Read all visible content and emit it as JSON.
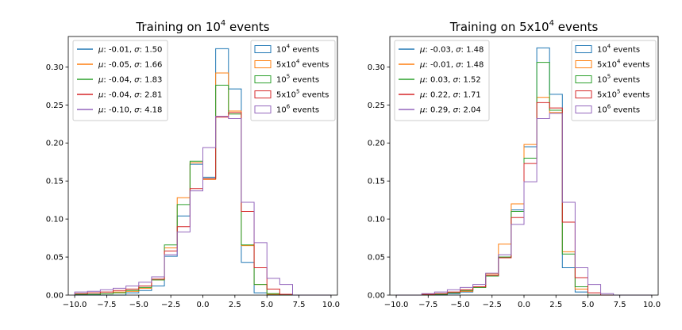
{
  "chart_data": [
    {
      "type": "bar",
      "histtype": "step",
      "title_main": "Training on 10",
      "title_sup": "4",
      "title_tail": " events",
      "xlim": [
        -10.5,
        10.5
      ],
      "ylim": [
        0,
        0.34
      ],
      "x_ticks": [
        -10.0,
        -7.5,
        -5.0,
        -2.5,
        0.0,
        2.5,
        5.0,
        7.5,
        10.0
      ],
      "x_tick_labels": [
        "−10.0",
        "−7.5",
        "−5.0",
        "−2.5",
        "0.0",
        "2.5",
        "5.0",
        "7.5",
        "10.0"
      ],
      "y_ticks": [
        0.0,
        0.05,
        0.1,
        0.15,
        0.2,
        0.25,
        0.3
      ],
      "y_tick_labels": [
        "0.00",
        "0.05",
        "0.10",
        "0.15",
        "0.20",
        "0.25",
        "0.30"
      ],
      "bin_edges": [
        -10,
        -9,
        -8,
        -7,
        -6,
        -5,
        -4,
        -3,
        -2,
        -1,
        0,
        1,
        2,
        3,
        4,
        5,
        6,
        7,
        8,
        9,
        10
      ],
      "series": [
        {
          "legend_base": "10",
          "legend_sup": "4",
          "legend_tail": " events",
          "color": "#1f77b4",
          "values": [
            0,
            0,
            0,
            0,
            0.003,
            0.006,
            0.012,
            0.051,
            0.104,
            0.172,
            0.155,
            0.324,
            0.271,
            0.043,
            0.003,
            0,
            0,
            0,
            0,
            0
          ]
        },
        {
          "legend_base": "5x10",
          "legend_sup": "4",
          "legend_tail": " events",
          "color": "#ff7f0e",
          "values": [
            0.001,
            0.001,
            0.002,
            0.004,
            0.005,
            0.009,
            0.02,
            0.062,
            0.128,
            0.174,
            0.152,
            0.292,
            0.242,
            0.065,
            0.014,
            0.001,
            0,
            0,
            0,
            0
          ]
        },
        {
          "legend_base": "10",
          "legend_sup": "5",
          "legend_tail": " events",
          "color": "#2ca02c",
          "values": [
            0.001,
            0.001,
            0.002,
            0.003,
            0.006,
            0.01,
            0.02,
            0.066,
            0.119,
            0.176,
            0.153,
            0.276,
            0.238,
            0.066,
            0.014,
            0.002,
            0,
            0,
            0,
            0
          ]
        },
        {
          "legend_base": "5x10",
          "legend_sup": "5",
          "legend_tail": " events",
          "color": "#d62728",
          "values": [
            0.002,
            0.003,
            0.004,
            0.006,
            0.008,
            0.012,
            0.021,
            0.058,
            0.09,
            0.14,
            0.153,
            0.234,
            0.24,
            0.11,
            0.036,
            0.008,
            0.001,
            0,
            0,
            0
          ]
        },
        {
          "legend_base": "10",
          "legend_sup": "6",
          "legend_tail": " events",
          "color": "#9467bd",
          "values": [
            0.004,
            0.005,
            0.007,
            0.009,
            0.012,
            0.017,
            0.024,
            0.053,
            0.083,
            0.137,
            0.194,
            0.235,
            0.232,
            0.122,
            0.069,
            0.022,
            0.014,
            0,
            0,
            0
          ]
        }
      ],
      "fit_legend": [
        {
          "color": "#1f77b4",
          "mu": "-0.01",
          "sigma": "1.50"
        },
        {
          "color": "#ff7f0e",
          "mu": "-0.05",
          "sigma": "1.66"
        },
        {
          "color": "#2ca02c",
          "mu": "-0.04",
          "sigma": "1.83"
        },
        {
          "color": "#d62728",
          "mu": "-0.04",
          "sigma": "2.81"
        },
        {
          "color": "#9467bd",
          "mu": "-0.10",
          "sigma": "4.18"
        }
      ],
      "legend_location_fits": "upper-left",
      "legend_location_series": "upper-right"
    },
    {
      "type": "bar",
      "histtype": "step",
      "title_main": "Training on 5x10",
      "title_sup": "4",
      "title_tail": " events",
      "xlim": [
        -10.5,
        10.5
      ],
      "ylim": [
        0,
        0.34
      ],
      "x_ticks": [
        -10.0,
        -7.5,
        -5.0,
        -2.5,
        0.0,
        2.5,
        5.0,
        7.5,
        10.0
      ],
      "x_tick_labels": [
        "−10.0",
        "−7.5",
        "−5.0",
        "−2.5",
        "0.0",
        "2.5",
        "5.0",
        "7.5",
        "10.0"
      ],
      "y_ticks": [
        0.0,
        0.05,
        0.1,
        0.15,
        0.2,
        0.25,
        0.3
      ],
      "y_tick_labels": [
        "0.00",
        "0.05",
        "0.10",
        "0.15",
        "0.20",
        "0.25",
        "0.30"
      ],
      "bin_edges": [
        -10,
        -9,
        -8,
        -7,
        -6,
        -5,
        -4,
        -3,
        -2,
        -1,
        0,
        1,
        2,
        3,
        4,
        5,
        6,
        7,
        8,
        9,
        10
      ],
      "series": [
        {
          "legend_base": "10",
          "legend_sup": "4",
          "legend_tail": " events",
          "color": "#1f77b4",
          "values": [
            0,
            0,
            0,
            0,
            0.002,
            0.004,
            0.01,
            0.025,
            0.05,
            0.112,
            0.195,
            0.325,
            0.264,
            0.036,
            0.004,
            0,
            0,
            0,
            0,
            0
          ]
        },
        {
          "legend_base": "5x10",
          "legend_sup": "4",
          "legend_tail": " events",
          "color": "#ff7f0e",
          "values": [
            0,
            0,
            0,
            0.001,
            0.003,
            0.005,
            0.01,
            0.028,
            0.067,
            0.12,
            0.198,
            0.26,
            0.24,
            0.057,
            0.008,
            0,
            0,
            0,
            0,
            0
          ]
        },
        {
          "legend_base": "10",
          "legend_sup": "5",
          "legend_tail": " events",
          "color": "#2ca02c",
          "values": [
            0,
            0,
            0,
            0.001,
            0.003,
            0.006,
            0.01,
            0.025,
            0.05,
            0.11,
            0.18,
            0.306,
            0.243,
            0.054,
            0.011,
            0,
            0,
            0,
            0,
            0
          ]
        },
        {
          "legend_base": "5x10",
          "legend_sup": "5",
          "legend_tail": " events",
          "color": "#d62728",
          "values": [
            0,
            0,
            0.001,
            0.002,
            0.004,
            0.007,
            0.011,
            0.026,
            0.049,
            0.102,
            0.173,
            0.253,
            0.246,
            0.096,
            0.023,
            0.003,
            0,
            0,
            0,
            0
          ]
        },
        {
          "legend_base": "10",
          "legend_sup": "6",
          "legend_tail": " events",
          "color": "#9467bd",
          "values": [
            0,
            0,
            0.002,
            0.004,
            0.007,
            0.01,
            0.014,
            0.029,
            0.053,
            0.093,
            0.149,
            0.232,
            0.239,
            0.122,
            0.036,
            0.014,
            0.002,
            0,
            0,
            0
          ]
        }
      ],
      "fit_legend": [
        {
          "color": "#1f77b4",
          "mu": "-0.03",
          "sigma": "1.48"
        },
        {
          "color": "#ff7f0e",
          "mu": "-0.01",
          "sigma": "1.48"
        },
        {
          "color": "#2ca02c",
          "mu": "0.03",
          "sigma": "1.52"
        },
        {
          "color": "#d62728",
          "mu": "0.22",
          "sigma": "1.71"
        },
        {
          "color": "#9467bd",
          "mu": "0.29",
          "sigma": "2.04"
        }
      ],
      "legend_location_fits": "upper-left",
      "legend_location_series": "upper-right"
    }
  ]
}
